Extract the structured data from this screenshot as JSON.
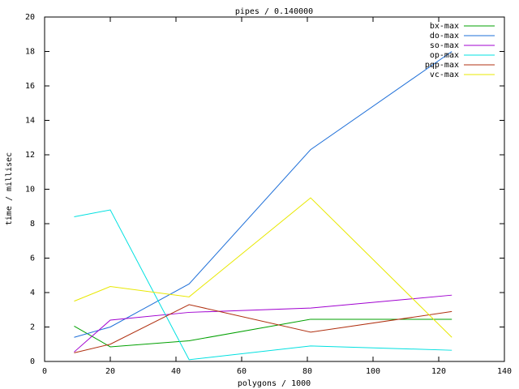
{
  "chart_data": {
    "type": "line",
    "title": "pipes / 0.140000",
    "x_label": "polygons / 1000",
    "y_label": "time / millisec",
    "x": [
      9,
      20,
      44,
      81,
      124
    ],
    "series": [
      {
        "name": "bx-max",
        "color": "#00a000",
        "values": [
          2.05,
          0.85,
          1.2,
          2.45,
          2.45
        ]
      },
      {
        "name": "do-max",
        "color": "#1e6fd8",
        "values": [
          1.4,
          2.0,
          4.5,
          12.3,
          18.0
        ]
      },
      {
        "name": "so-max",
        "color": "#a000d0",
        "values": [
          0.55,
          2.4,
          2.85,
          3.1,
          3.85
        ]
      },
      {
        "name": "op-max",
        "color": "#00e0e0",
        "values": [
          8.4,
          8.8,
          0.1,
          0.9,
          0.65
        ]
      },
      {
        "name": "pqp-max",
        "color": "#b03010",
        "values": [
          0.5,
          1.0,
          3.3,
          1.7,
          2.9
        ]
      },
      {
        "name": "vc-max",
        "color": "#e8e800",
        "values": [
          3.5,
          4.35,
          3.75,
          9.5,
          1.4
        ]
      }
    ],
    "xlim": [
      0,
      140
    ],
    "xticks": [
      0,
      20,
      40,
      60,
      80,
      100,
      120,
      140
    ],
    "ylim": [
      0,
      20
    ],
    "yticks": [
      0,
      2,
      4,
      6,
      8,
      10,
      12,
      14,
      16,
      18,
      20
    ],
    "legend": "top-right",
    "grid": false
  }
}
